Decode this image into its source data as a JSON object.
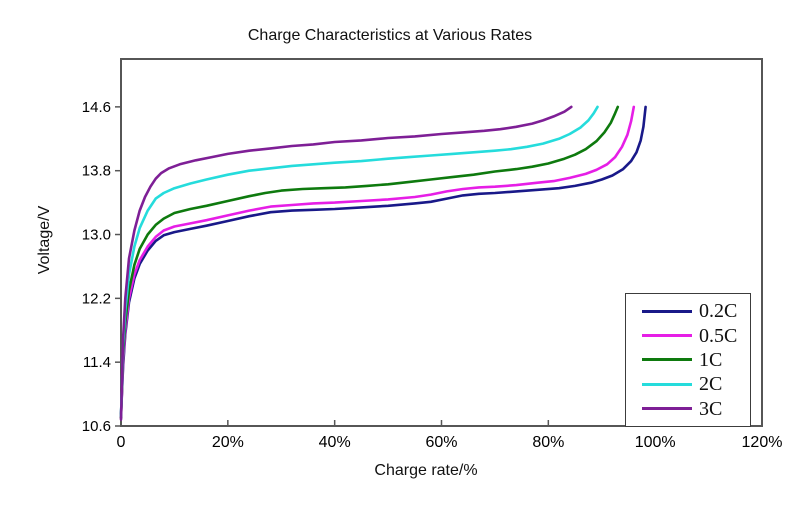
{
  "chart_data": {
    "type": "line",
    "title": "Charge Characteristics at Various Rates",
    "xlabel": "Charge rate/%",
    "ylabel": "Voltage/V",
    "xlim": [
      0,
      120
    ],
    "ylim": [
      10.6,
      15.2
    ],
    "grid": false,
    "legend_position": "bottom-right",
    "axis_color": "#565656",
    "x_ticks": [
      {
        "v": 0,
        "label": "0"
      },
      {
        "v": 20,
        "label": "20%"
      },
      {
        "v": 40,
        "label": "40%"
      },
      {
        "v": 60,
        "label": "60%"
      },
      {
        "v": 80,
        "label": "80%"
      },
      {
        "v": 100,
        "label": "100%"
      },
      {
        "v": 120,
        "label": "120%"
      }
    ],
    "y_ticks": [
      {
        "v": 10.6,
        "label": "10.6"
      },
      {
        "v": 11.4,
        "label": "11.4"
      },
      {
        "v": 12.2,
        "label": "12.2"
      },
      {
        "v": 13.0,
        "label": "13.0"
      },
      {
        "v": 13.8,
        "label": "13.8"
      },
      {
        "v": 14.6,
        "label": "14.6"
      }
    ],
    "series": [
      {
        "name": "0.2C",
        "color": "#191989",
        "points": [
          [
            0,
            10.75
          ],
          [
            0.4,
            11.35
          ],
          [
            0.8,
            11.75
          ],
          [
            1.5,
            12.15
          ],
          [
            2.5,
            12.45
          ],
          [
            3.5,
            12.63
          ],
          [
            5,
            12.8
          ],
          [
            6.5,
            12.92
          ],
          [
            8,
            12.99
          ],
          [
            10,
            13.03
          ],
          [
            13,
            13.07
          ],
          [
            16,
            13.11
          ],
          [
            20,
            13.17
          ],
          [
            24,
            13.23
          ],
          [
            28,
            13.28
          ],
          [
            32,
            13.3
          ],
          [
            36,
            13.31
          ],
          [
            40,
            13.32
          ],
          [
            45,
            13.34
          ],
          [
            50,
            13.36
          ],
          [
            55,
            13.39
          ],
          [
            58,
            13.41
          ],
          [
            61,
            13.45
          ],
          [
            64,
            13.49
          ],
          [
            67,
            13.51
          ],
          [
            70,
            13.52
          ],
          [
            74,
            13.54
          ],
          [
            78,
            13.56
          ],
          [
            82,
            13.58
          ],
          [
            85,
            13.61
          ],
          [
            88,
            13.65
          ],
          [
            90,
            13.69
          ],
          [
            92,
            13.74
          ],
          [
            94,
            13.82
          ],
          [
            95.5,
            13.92
          ],
          [
            96.5,
            14.03
          ],
          [
            97.3,
            14.18
          ],
          [
            97.8,
            14.35
          ],
          [
            98.2,
            14.6
          ]
        ]
      },
      {
        "name": "0.5C",
        "color": "#E61EE6",
        "points": [
          [
            0,
            10.7
          ],
          [
            0.4,
            11.4
          ],
          [
            0.8,
            11.8
          ],
          [
            1.5,
            12.2
          ],
          [
            2.5,
            12.5
          ],
          [
            3.5,
            12.68
          ],
          [
            5,
            12.85
          ],
          [
            6.5,
            12.97
          ],
          [
            8,
            13.05
          ],
          [
            10,
            13.1
          ],
          [
            13,
            13.14
          ],
          [
            16,
            13.18
          ],
          [
            20,
            13.24
          ],
          [
            24,
            13.3
          ],
          [
            28,
            13.35
          ],
          [
            32,
            13.37
          ],
          [
            36,
            13.39
          ],
          [
            40,
            13.4
          ],
          [
            45,
            13.42
          ],
          [
            50,
            13.44
          ],
          [
            55,
            13.47
          ],
          [
            58,
            13.5
          ],
          [
            61,
            13.54
          ],
          [
            64,
            13.57
          ],
          [
            67,
            13.59
          ],
          [
            70,
            13.6
          ],
          [
            74,
            13.62
          ],
          [
            78,
            13.65
          ],
          [
            81,
            13.67
          ],
          [
            84,
            13.71
          ],
          [
            87,
            13.76
          ],
          [
            89,
            13.81
          ],
          [
            91,
            13.88
          ],
          [
            92.5,
            13.97
          ],
          [
            93.8,
            14.1
          ],
          [
            94.8,
            14.25
          ],
          [
            95.5,
            14.42
          ],
          [
            96,
            14.6
          ]
        ]
      },
      {
        "name": "1C",
        "color": "#0E7A0E",
        "points": [
          [
            0,
            10.7
          ],
          [
            0.4,
            11.5
          ],
          [
            0.8,
            11.9
          ],
          [
            1.5,
            12.3
          ],
          [
            2.5,
            12.62
          ],
          [
            3.5,
            12.82
          ],
          [
            5,
            13.0
          ],
          [
            6.5,
            13.12
          ],
          [
            8,
            13.2
          ],
          [
            10,
            13.27
          ],
          [
            13,
            13.32
          ],
          [
            16,
            13.36
          ],
          [
            20,
            13.42
          ],
          [
            24,
            13.48
          ],
          [
            27,
            13.52
          ],
          [
            30,
            13.55
          ],
          [
            34,
            13.57
          ],
          [
            38,
            13.58
          ],
          [
            42,
            13.59
          ],
          [
            46,
            13.61
          ],
          [
            50,
            13.63
          ],
          [
            54,
            13.66
          ],
          [
            58,
            13.69
          ],
          [
            62,
            13.72
          ],
          [
            66,
            13.75
          ],
          [
            70,
            13.79
          ],
          [
            74,
            13.82
          ],
          [
            77,
            13.85
          ],
          [
            80,
            13.89
          ],
          [
            83,
            13.95
          ],
          [
            85,
            14.0
          ],
          [
            87,
            14.07
          ],
          [
            89,
            14.17
          ],
          [
            90.5,
            14.28
          ],
          [
            91.7,
            14.4
          ],
          [
            92.5,
            14.52
          ],
          [
            93,
            14.6
          ]
        ]
      },
      {
        "name": "2C",
        "color": "#25DCDC",
        "points": [
          [
            0,
            10.72
          ],
          [
            0.4,
            11.6
          ],
          [
            0.8,
            12.05
          ],
          [
            1.5,
            12.5
          ],
          [
            2.5,
            12.85
          ],
          [
            3.5,
            13.08
          ],
          [
            5,
            13.3
          ],
          [
            6.5,
            13.45
          ],
          [
            8,
            13.52
          ],
          [
            10,
            13.58
          ],
          [
            13,
            13.64
          ],
          [
            16,
            13.69
          ],
          [
            20,
            13.75
          ],
          [
            24,
            13.8
          ],
          [
            28,
            13.83
          ],
          [
            32,
            13.86
          ],
          [
            36,
            13.88
          ],
          [
            40,
            13.9
          ],
          [
            45,
            13.92
          ],
          [
            50,
            13.95
          ],
          [
            54,
            13.97
          ],
          [
            58,
            13.99
          ],
          [
            62,
            14.01
          ],
          [
            66,
            14.03
          ],
          [
            70,
            14.05
          ],
          [
            73,
            14.07
          ],
          [
            76,
            14.1
          ],
          [
            79,
            14.14
          ],
          [
            82,
            14.2
          ],
          [
            84,
            14.26
          ],
          [
            86,
            14.34
          ],
          [
            87.5,
            14.43
          ],
          [
            88.5,
            14.52
          ],
          [
            89.2,
            14.6
          ]
        ]
      },
      {
        "name": "3C",
        "color": "#7E1F96",
        "points": [
          [
            0,
            10.68
          ],
          [
            0.4,
            11.7
          ],
          [
            0.8,
            12.2
          ],
          [
            1.5,
            12.7
          ],
          [
            2.5,
            13.05
          ],
          [
            3.5,
            13.3
          ],
          [
            4.5,
            13.47
          ],
          [
            5.5,
            13.6
          ],
          [
            6.5,
            13.7
          ],
          [
            7.5,
            13.77
          ],
          [
            9,
            13.83
          ],
          [
            11,
            13.88
          ],
          [
            14,
            13.93
          ],
          [
            17,
            13.97
          ],
          [
            20,
            14.01
          ],
          [
            24,
            14.05
          ],
          [
            28,
            14.08
          ],
          [
            32,
            14.11
          ],
          [
            36,
            14.13
          ],
          [
            40,
            14.16
          ],
          [
            45,
            14.18
          ],
          [
            50,
            14.21
          ],
          [
            55,
            14.23
          ],
          [
            60,
            14.26
          ],
          [
            64,
            14.28
          ],
          [
            68,
            14.3
          ],
          [
            71,
            14.32
          ],
          [
            74,
            14.35
          ],
          [
            77,
            14.39
          ],
          [
            79,
            14.43
          ],
          [
            81,
            14.48
          ],
          [
            83,
            14.54
          ],
          [
            84.3,
            14.6
          ]
        ]
      }
    ]
  }
}
